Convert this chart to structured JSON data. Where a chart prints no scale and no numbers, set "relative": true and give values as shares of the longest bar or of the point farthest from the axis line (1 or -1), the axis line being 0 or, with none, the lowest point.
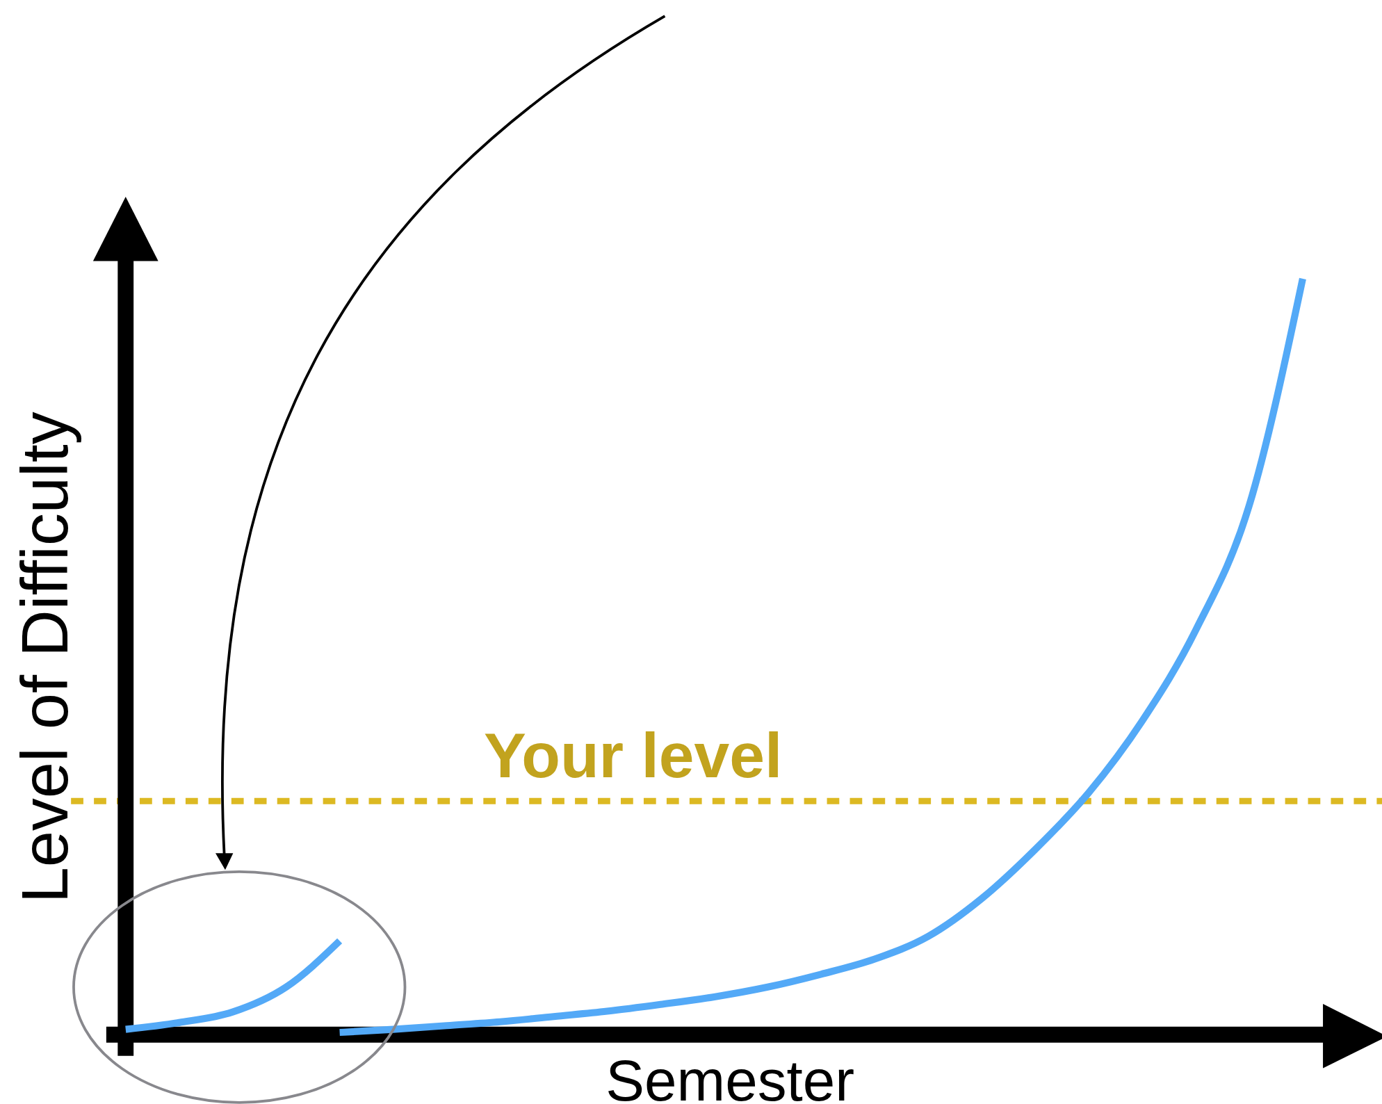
{
  "chart_data": {
    "type": "line",
    "xlabel": "Semester",
    "ylabel": "Level of Difficulty",
    "relative": true,
    "categories": [
      null,
      null,
      null,
      null,
      null,
      null,
      null,
      null,
      null,
      null,
      null,
      null,
      null,
      null,
      null,
      null,
      null,
      null,
      null,
      null,
      null,
      null,
      null
    ],
    "series": [
      {
        "color": "#53a9f7",
        "values": [
          0.007,
          0.016,
          0.03,
          0.063,
          0.124,
          null,
          null,
          null,
          null,
          null,
          null,
          null,
          null,
          null,
          null,
          null,
          null,
          null,
          null,
          null,
          null,
          null,
          null
        ]
      },
      {
        "color": "#53a9f7",
        "values": [
          null,
          null,
          null,
          null,
          0.003,
          0.007,
          0.012,
          0.017,
          0.024,
          0.031,
          0.04,
          0.05,
          0.063,
          0.08,
          0.1,
          0.13,
          0.18,
          0.245,
          0.32,
          0.415,
          0.535,
          0.7,
          1.0
        ]
      }
    ],
    "ref_lines": [
      {
        "axis": "y",
        "value": 0.309,
        "label": "Your level",
        "color": "#dcb922",
        "line_style": "dashed"
      }
    ]
  }
}
